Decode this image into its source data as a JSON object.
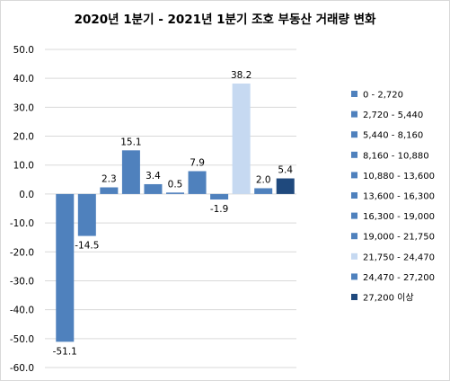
{
  "chart_data": {
    "type": "bar",
    "title": "2020년 1분기 - 2021년 1분기 조호 부동산 거래량 변화",
    "categories": [
      "0 - 2,720",
      "2,720 - 5,440",
      "5,440 - 8,160",
      "8,160 - 10,880",
      "10,880 - 13,600",
      "13,600 - 16,300",
      "16,300 - 19,000",
      "19,000 - 21,750",
      "21,750 - 24,470",
      "24,470 - 27,200",
      "27,200 이상"
    ],
    "values": [
      -51.1,
      -14.5,
      2.3,
      15.1,
      3.4,
      0.5,
      7.9,
      -1.9,
      38.2,
      2.0,
      5.4
    ],
    "data_labels": [
      "-51.1",
      "-14.5",
      "2.3",
      "15.1",
      "3.4",
      "0.5",
      "7.9",
      "-1.9",
      "38.2",
      "2.0",
      "5.4"
    ],
    "colors": [
      "#4f81bd",
      "#4f81bd",
      "#4f81bd",
      "#4f81bd",
      "#4f81bd",
      "#4f81bd",
      "#4f81bd",
      "#4f81bd",
      "#c6d9f1",
      "#4f81bd",
      "#1f497d"
    ],
    "ylim": [
      -60,
      50
    ],
    "yticks": [
      "50.0",
      "40.0",
      "30.0",
      "20.0",
      "10.0",
      "0.0",
      "-10.0",
      "-20.0",
      "-30.0",
      "-40.0",
      "-50.0",
      "-60.0"
    ],
    "ytick_values": [
      50,
      40,
      30,
      20,
      10,
      0,
      -10,
      -20,
      -30,
      -40,
      -50,
      -60
    ],
    "grid": true,
    "legend_position": "right",
    "xlabel": "",
    "ylabel": ""
  }
}
